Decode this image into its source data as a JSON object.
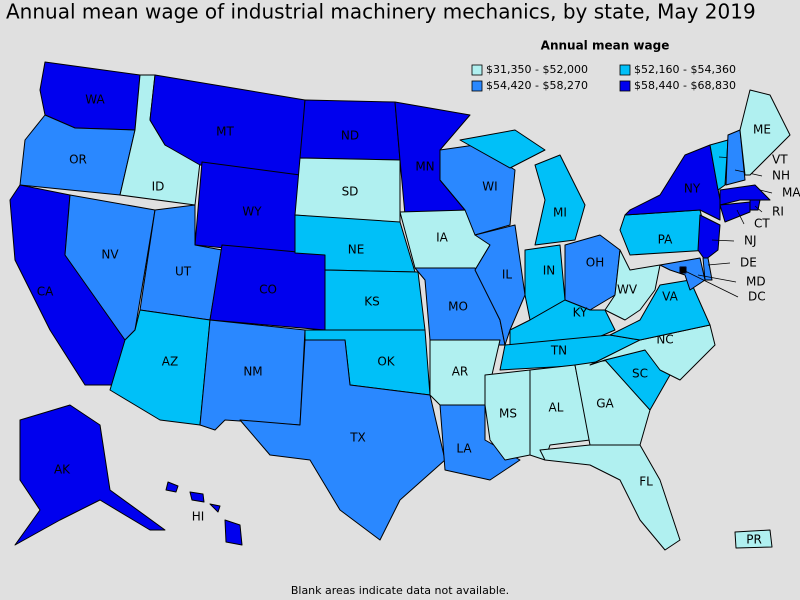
{
  "header": {
    "title": "Annual mean wage of industrial machinery mechanics, by state, May 2019"
  },
  "legend": {
    "title": "Annual mean wage",
    "items": [
      {
        "label": "$31,350 - $52,000",
        "color": "#b0f0f0"
      },
      {
        "label": "$52,160 - $54,360",
        "color": "#00c0f8"
      },
      {
        "label": "$54,420 - $58,270",
        "color": "#2a88ff"
      },
      {
        "label": "$58,440 - $68,830",
        "color": "#0000ee"
      }
    ]
  },
  "states": [
    {
      "label": "WA",
      "legend_item": 3
    },
    {
      "label": "OR",
      "legend_item": 2
    },
    {
      "label": "CA",
      "legend_item": 3
    },
    {
      "label": "NV",
      "legend_item": 2
    },
    {
      "label": "ID",
      "legend_item": 0
    },
    {
      "label": "MT",
      "legend_item": 3
    },
    {
      "label": "WY",
      "legend_item": 3
    },
    {
      "label": "UT",
      "legend_item": 2
    },
    {
      "label": "CO",
      "legend_item": 3
    },
    {
      "label": "AZ",
      "legend_item": 1
    },
    {
      "label": "NM",
      "legend_item": 2
    },
    {
      "label": "ND",
      "legend_item": 3
    },
    {
      "label": "SD",
      "legend_item": 0
    },
    {
      "label": "NE",
      "legend_item": 1
    },
    {
      "label": "KS",
      "legend_item": 1
    },
    {
      "label": "OK",
      "legend_item": 1
    },
    {
      "label": "TX",
      "legend_item": 2
    },
    {
      "label": "MN",
      "legend_item": 3
    },
    {
      "label": "IA",
      "legend_item": 0
    },
    {
      "label": "MO",
      "legend_item": 2
    },
    {
      "label": "AR",
      "legend_item": 0
    },
    {
      "label": "LA",
      "legend_item": 2
    },
    {
      "label": "WI",
      "legend_item": 2
    },
    {
      "label": "IL",
      "legend_item": 2
    },
    {
      "label": "MI",
      "legend_item": 1
    },
    {
      "label": "IN",
      "legend_item": 1
    },
    {
      "label": "OH",
      "legend_item": 2
    },
    {
      "label": "KY",
      "legend_item": 1
    },
    {
      "label": "TN",
      "legend_item": 1
    },
    {
      "label": "MS",
      "legend_item": 0
    },
    {
      "label": "AL",
      "legend_item": 0
    },
    {
      "label": "GA",
      "legend_item": 0
    },
    {
      "label": "FL",
      "legend_item": 0
    },
    {
      "label": "SC",
      "legend_item": 1
    },
    {
      "label": "NC",
      "legend_item": 0
    },
    {
      "label": "VA",
      "legend_item": 1
    },
    {
      "label": "WV",
      "legend_item": 0
    },
    {
      "label": "PA",
      "legend_item": 1
    },
    {
      "label": "NY",
      "legend_item": 3
    },
    {
      "label": "VT",
      "legend_item": 1
    },
    {
      "label": "NH",
      "legend_item": 2
    },
    {
      "label": "ME",
      "legend_item": 0
    },
    {
      "label": "MA",
      "legend_item": 3
    },
    {
      "label": "RI",
      "legend_item": 3
    },
    {
      "label": "CT",
      "legend_item": 3
    },
    {
      "label": "NJ",
      "legend_item": 3
    },
    {
      "label": "DE",
      "legend_item": 2
    },
    {
      "label": "MD",
      "legend_item": 2
    },
    {
      "label": "DC",
      "legend_item": 3
    },
    {
      "label": "AK",
      "legend_item": 3
    },
    {
      "label": "HI",
      "legend_item": 3
    },
    {
      "label": "PR",
      "legend_item": 0
    }
  ],
  "footnote": "Blank areas indicate data not available."
}
